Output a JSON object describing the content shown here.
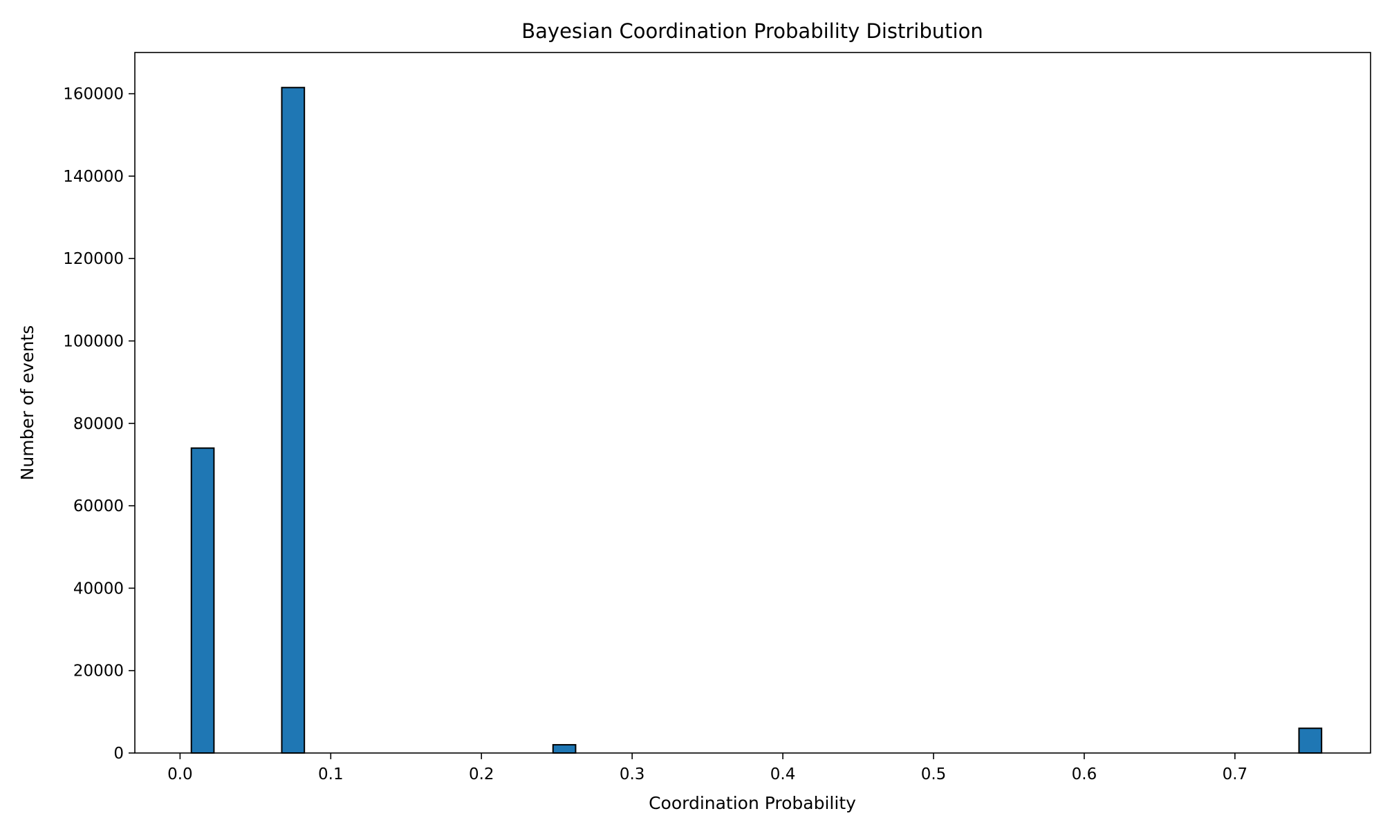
{
  "chart_data": {
    "type": "bar",
    "title": "Bayesian Coordination Probability Distribution",
    "xlabel": "Coordination Probability",
    "ylabel": "Number of events",
    "xlim": [
      -0.03,
      0.79
    ],
    "ylim": [
      0,
      170000
    ],
    "grid": false,
    "bin_width": 0.015,
    "bars": [
      {
        "x": 0.015,
        "value": 74000
      },
      {
        "x": 0.075,
        "value": 161500
      },
      {
        "x": 0.255,
        "value": 2000
      },
      {
        "x": 0.75,
        "value": 6000
      }
    ],
    "xticks": [
      {
        "value": 0.0,
        "label": "0.0"
      },
      {
        "value": 0.1,
        "label": "0.1"
      },
      {
        "value": 0.2,
        "label": "0.2"
      },
      {
        "value": 0.3,
        "label": "0.3"
      },
      {
        "value": 0.4,
        "label": "0.4"
      },
      {
        "value": 0.5,
        "label": "0.5"
      },
      {
        "value": 0.6,
        "label": "0.6"
      },
      {
        "value": 0.7,
        "label": "0.7"
      }
    ],
    "yticks": [
      {
        "value": 0,
        "label": "0"
      },
      {
        "value": 20000,
        "label": "20000"
      },
      {
        "value": 40000,
        "label": "40000"
      },
      {
        "value": 60000,
        "label": "60000"
      },
      {
        "value": 80000,
        "label": "80000"
      },
      {
        "value": 100000,
        "label": "100000"
      },
      {
        "value": 120000,
        "label": "120000"
      },
      {
        "value": 140000,
        "label": "140000"
      },
      {
        "value": 160000,
        "label": "160000"
      }
    ],
    "bar_color": "#1f77b4",
    "edge_color": "#000000"
  }
}
